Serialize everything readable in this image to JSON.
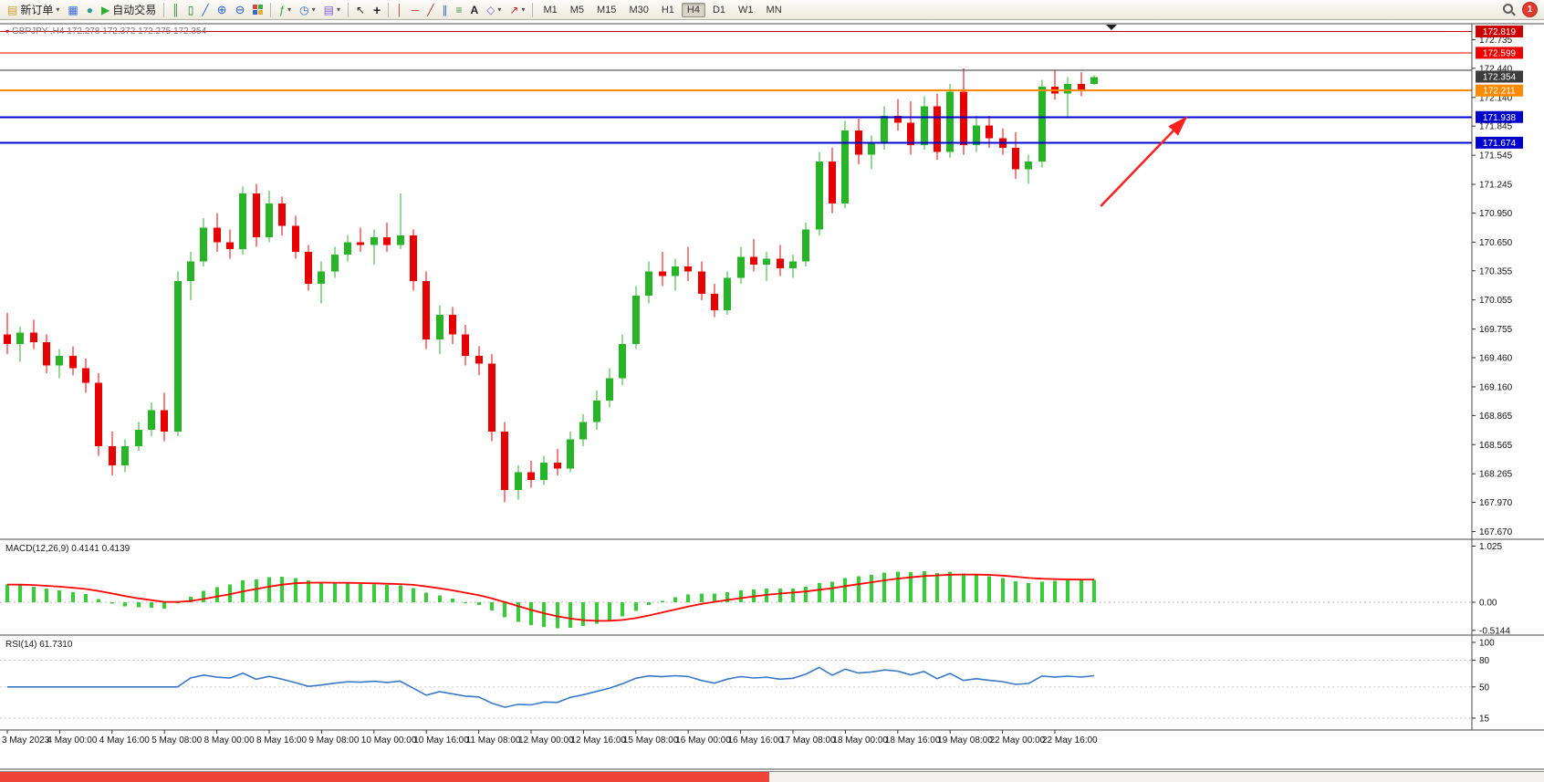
{
  "toolbar": {
    "new_order_label": "新订单",
    "auto_trading_label": "自动交易",
    "text_tool_label": "A",
    "timeframes": [
      "M1",
      "M5",
      "M15",
      "M30",
      "H1",
      "H4",
      "D1",
      "W1",
      "MN"
    ],
    "active_timeframe": "H4",
    "notification_badge": "1",
    "icons": {
      "new_order": "▤",
      "caret": "▾",
      "chart_window": "▦",
      "quotes": "●",
      "play": "▶",
      "bar_chart": "║",
      "candle_chart": "▯",
      "line_chart": "╱",
      "zoom_in": "⊕",
      "zoom_out": "⊖",
      "indicators": "ƒ",
      "clock": "◷",
      "template": "▤",
      "cursor": "↖",
      "crosshair": "+",
      "vline": "│",
      "hline": "─",
      "trendline": "╱",
      "channel": "∥",
      "fibonacci": "≡",
      "shapes": "◇",
      "arrows": "↗"
    }
  },
  "chart_data": {
    "type": "candlestick",
    "symbol": "GBPJPY-",
    "timeframe": "H4",
    "title_line": "GBPJPY-,H4 172.278 172.372 172.275 172.354",
    "title_marker": "▾",
    "ohlc_display": {
      "open": 172.278,
      "high": 172.372,
      "low": 172.275,
      "close": 172.354
    },
    "ohlc": [
      [
        169.7,
        169.92,
        169.5,
        169.6
      ],
      [
        169.6,
        169.78,
        169.42,
        169.72
      ],
      [
        169.72,
        169.85,
        169.55,
        169.62
      ],
      [
        169.62,
        169.7,
        169.3,
        169.38
      ],
      [
        169.38,
        169.55,
        169.25,
        169.48
      ],
      [
        169.48,
        169.58,
        169.28,
        169.35
      ],
      [
        169.35,
        169.45,
        169.1,
        169.2
      ],
      [
        169.2,
        169.3,
        168.45,
        168.55
      ],
      [
        168.55,
        168.7,
        168.25,
        168.35
      ],
      [
        168.35,
        168.62,
        168.28,
        168.55
      ],
      [
        168.55,
        168.8,
        168.5,
        168.72
      ],
      [
        168.72,
        169.0,
        168.65,
        168.92
      ],
      [
        168.92,
        169.1,
        168.6,
        168.7
      ],
      [
        168.7,
        170.35,
        168.65,
        170.25
      ],
      [
        170.25,
        170.55,
        170.05,
        170.45
      ],
      [
        170.45,
        170.9,
        170.4,
        170.8
      ],
      [
        170.8,
        170.95,
        170.55,
        170.65
      ],
      [
        170.65,
        170.78,
        170.48,
        170.58
      ],
      [
        170.58,
        171.22,
        170.52,
        171.15
      ],
      [
        171.15,
        171.25,
        170.6,
        170.7
      ],
      [
        170.7,
        171.18,
        170.65,
        171.05
      ],
      [
        171.05,
        171.12,
        170.72,
        170.82
      ],
      [
        170.82,
        170.92,
        170.48,
        170.55
      ],
      [
        170.55,
        170.62,
        170.15,
        170.22
      ],
      [
        170.22,
        170.45,
        170.02,
        170.35
      ],
      [
        170.35,
        170.6,
        170.28,
        170.52
      ],
      [
        170.52,
        170.72,
        170.45,
        170.65
      ],
      [
        170.65,
        170.8,
        170.55,
        170.62
      ],
      [
        170.62,
        170.78,
        170.42,
        170.7
      ],
      [
        170.7,
        170.85,
        170.55,
        170.62
      ],
      [
        170.62,
        171.15,
        170.58,
        170.72
      ],
      [
        170.72,
        170.78,
        170.15,
        170.25
      ],
      [
        170.25,
        170.35,
        169.55,
        169.65
      ],
      [
        169.65,
        170.0,
        169.5,
        169.9
      ],
      [
        169.9,
        169.98,
        169.6,
        169.7
      ],
      [
        169.7,
        169.8,
        169.38,
        169.48
      ],
      [
        169.48,
        169.58,
        169.28,
        169.4
      ],
      [
        169.4,
        169.5,
        168.6,
        168.7
      ],
      [
        168.7,
        168.8,
        167.97,
        168.1
      ],
      [
        168.1,
        168.35,
        168.0,
        168.28
      ],
      [
        168.28,
        168.4,
        168.12,
        168.2
      ],
      [
        168.2,
        168.45,
        168.15,
        168.38
      ],
      [
        168.38,
        168.52,
        168.25,
        168.32
      ],
      [
        168.32,
        168.7,
        168.28,
        168.62
      ],
      [
        168.62,
        168.88,
        168.55,
        168.8
      ],
      [
        168.8,
        169.12,
        168.72,
        169.02
      ],
      [
        169.02,
        169.35,
        168.95,
        169.25
      ],
      [
        169.25,
        169.7,
        169.18,
        169.6
      ],
      [
        169.6,
        170.2,
        169.55,
        170.1
      ],
      [
        170.1,
        170.45,
        170.02,
        170.35
      ],
      [
        170.35,
        170.55,
        170.2,
        170.3
      ],
      [
        170.3,
        170.48,
        170.15,
        170.4
      ],
      [
        170.4,
        170.6,
        170.25,
        170.35
      ],
      [
        170.35,
        170.45,
        170.05,
        170.12
      ],
      [
        170.12,
        170.22,
        169.88,
        169.95
      ],
      [
        169.95,
        170.35,
        169.9,
        170.28
      ],
      [
        170.28,
        170.6,
        170.22,
        170.5
      ],
      [
        170.5,
        170.68,
        170.35,
        170.42
      ],
      [
        170.42,
        170.55,
        170.25,
        170.48
      ],
      [
        170.48,
        170.62,
        170.3,
        170.38
      ],
      [
        170.38,
        170.52,
        170.28,
        170.45
      ],
      [
        170.45,
        170.85,
        170.4,
        170.78
      ],
      [
        170.78,
        171.58,
        170.72,
        171.48
      ],
      [
        171.48,
        171.62,
        170.95,
        171.05
      ],
      [
        171.05,
        171.9,
        171.0,
        171.8
      ],
      [
        171.8,
        171.92,
        171.45,
        171.55
      ],
      [
        171.55,
        171.75,
        171.4,
        171.68
      ],
      [
        171.68,
        172.05,
        171.6,
        171.95
      ],
      [
        171.95,
        172.12,
        171.8,
        171.88
      ],
      [
        171.88,
        172.1,
        171.55,
        171.65
      ],
      [
        171.65,
        172.15,
        171.6,
        172.05
      ],
      [
        172.05,
        172.18,
        171.5,
        171.58
      ],
      [
        171.58,
        172.28,
        171.52,
        172.2
      ],
      [
        172.2,
        172.44,
        171.55,
        171.65
      ],
      [
        171.65,
        171.95,
        171.58,
        171.85
      ],
      [
        171.85,
        171.95,
        171.62,
        171.72
      ],
      [
        171.72,
        171.82,
        171.55,
        171.62
      ],
      [
        171.62,
        171.78,
        171.3,
        171.4
      ],
      [
        171.4,
        171.55,
        171.25,
        171.48
      ],
      [
        171.48,
        172.32,
        171.42,
        172.25
      ],
      [
        172.25,
        172.42,
        172.12,
        172.18
      ],
      [
        172.18,
        172.35,
        171.92,
        172.28
      ],
      [
        172.28,
        172.4,
        172.15,
        172.22
      ],
      [
        172.28,
        172.37,
        172.27,
        172.35
      ]
    ],
    "time_labels": [
      "3 May 2023",
      "4 May 00:00",
      "4 May 16:00",
      "5 May 08:00",
      "8 May 00:00",
      "8 May 16:00",
      "9 May 08:00",
      "10 May 00:00",
      "10 May 16:00",
      "11 May 08:00",
      "12 May 00:00",
      "12 May 16:00",
      "15 May 08:00",
      "16 May 00:00",
      "16 May 16:00",
      "17 May 08:00",
      "18 May 00:00",
      "18 May 16:00",
      "19 May 08:00",
      "22 May 00:00",
      "22 May 16:00"
    ],
    "label_every": 4,
    "price_axis": {
      "min": 167.6,
      "max": 172.88,
      "ticks": [
        172.735,
        172.44,
        172.14,
        171.845,
        171.545,
        171.245,
        170.95,
        170.65,
        170.355,
        170.055,
        169.755,
        169.46,
        169.16,
        168.865,
        168.565,
        168.265,
        167.97,
        167.67
      ]
    },
    "current_price": {
      "value": 172.354,
      "tag_color": "#3c3c3c"
    },
    "hlines": [
      {
        "price": 172.819,
        "color": "#cc0000",
        "width": 1,
        "tag": true,
        "tag_color": "#cc0000"
      },
      {
        "price": 172.599,
        "color": "#ee0000",
        "width": 1,
        "tag": true,
        "tag_color": "#ee0000"
      },
      {
        "price": 172.42,
        "color": "#333333",
        "width": 1,
        "tag": false,
        "tag_color": "#333333"
      },
      {
        "price": 172.211,
        "color": "#ff8a00",
        "width": 2,
        "tag": true,
        "tag_color": "#ff8a00"
      },
      {
        "price": 171.938,
        "color": "#0000cc",
        "width": 2,
        "tag": true,
        "tag_color": "#0000cc"
      },
      {
        "price": 171.674,
        "color": "#0000cc",
        "width": 2,
        "tag": true,
        "tag_color": "#0000cc"
      }
    ],
    "colors": {
      "bull": "#28b428",
      "bear": "#e80000",
      "macd_hist": "#36cd36",
      "macd_signal": "#ff0000",
      "rsi_line": "#3878c8",
      "background": "#ffffff"
    },
    "indicators": {
      "macd": {
        "label": "MACD(12,26,9) 0.4141 0.4139",
        "params": [
          12,
          26,
          9
        ],
        "values": [
          0.4141,
          0.4139
        ],
        "axis": [
          {
            "v": 1.025,
            "t": "1.025"
          },
          {
            "v": 0,
            "t": "0.00"
          },
          {
            "v": -0.5144,
            "t": "-0.5144"
          }
        ]
      },
      "rsi": {
        "label": "RSI(14) 61.7310",
        "period": 14,
        "value": 61.731,
        "levels": [
          80,
          50,
          15
        ],
        "axis": [
          {
            "v": 100,
            "t": "100"
          },
          {
            "v": 80,
            "t": "80"
          },
          {
            "v": 50,
            "t": "50"
          },
          {
            "v": 15,
            "t": "15"
          }
        ]
      }
    },
    "arrow": {
      "from_index": 83.5,
      "from_price": 171.02,
      "to_index": 90,
      "to_price": 171.93,
      "color": "#ff2020"
    }
  }
}
